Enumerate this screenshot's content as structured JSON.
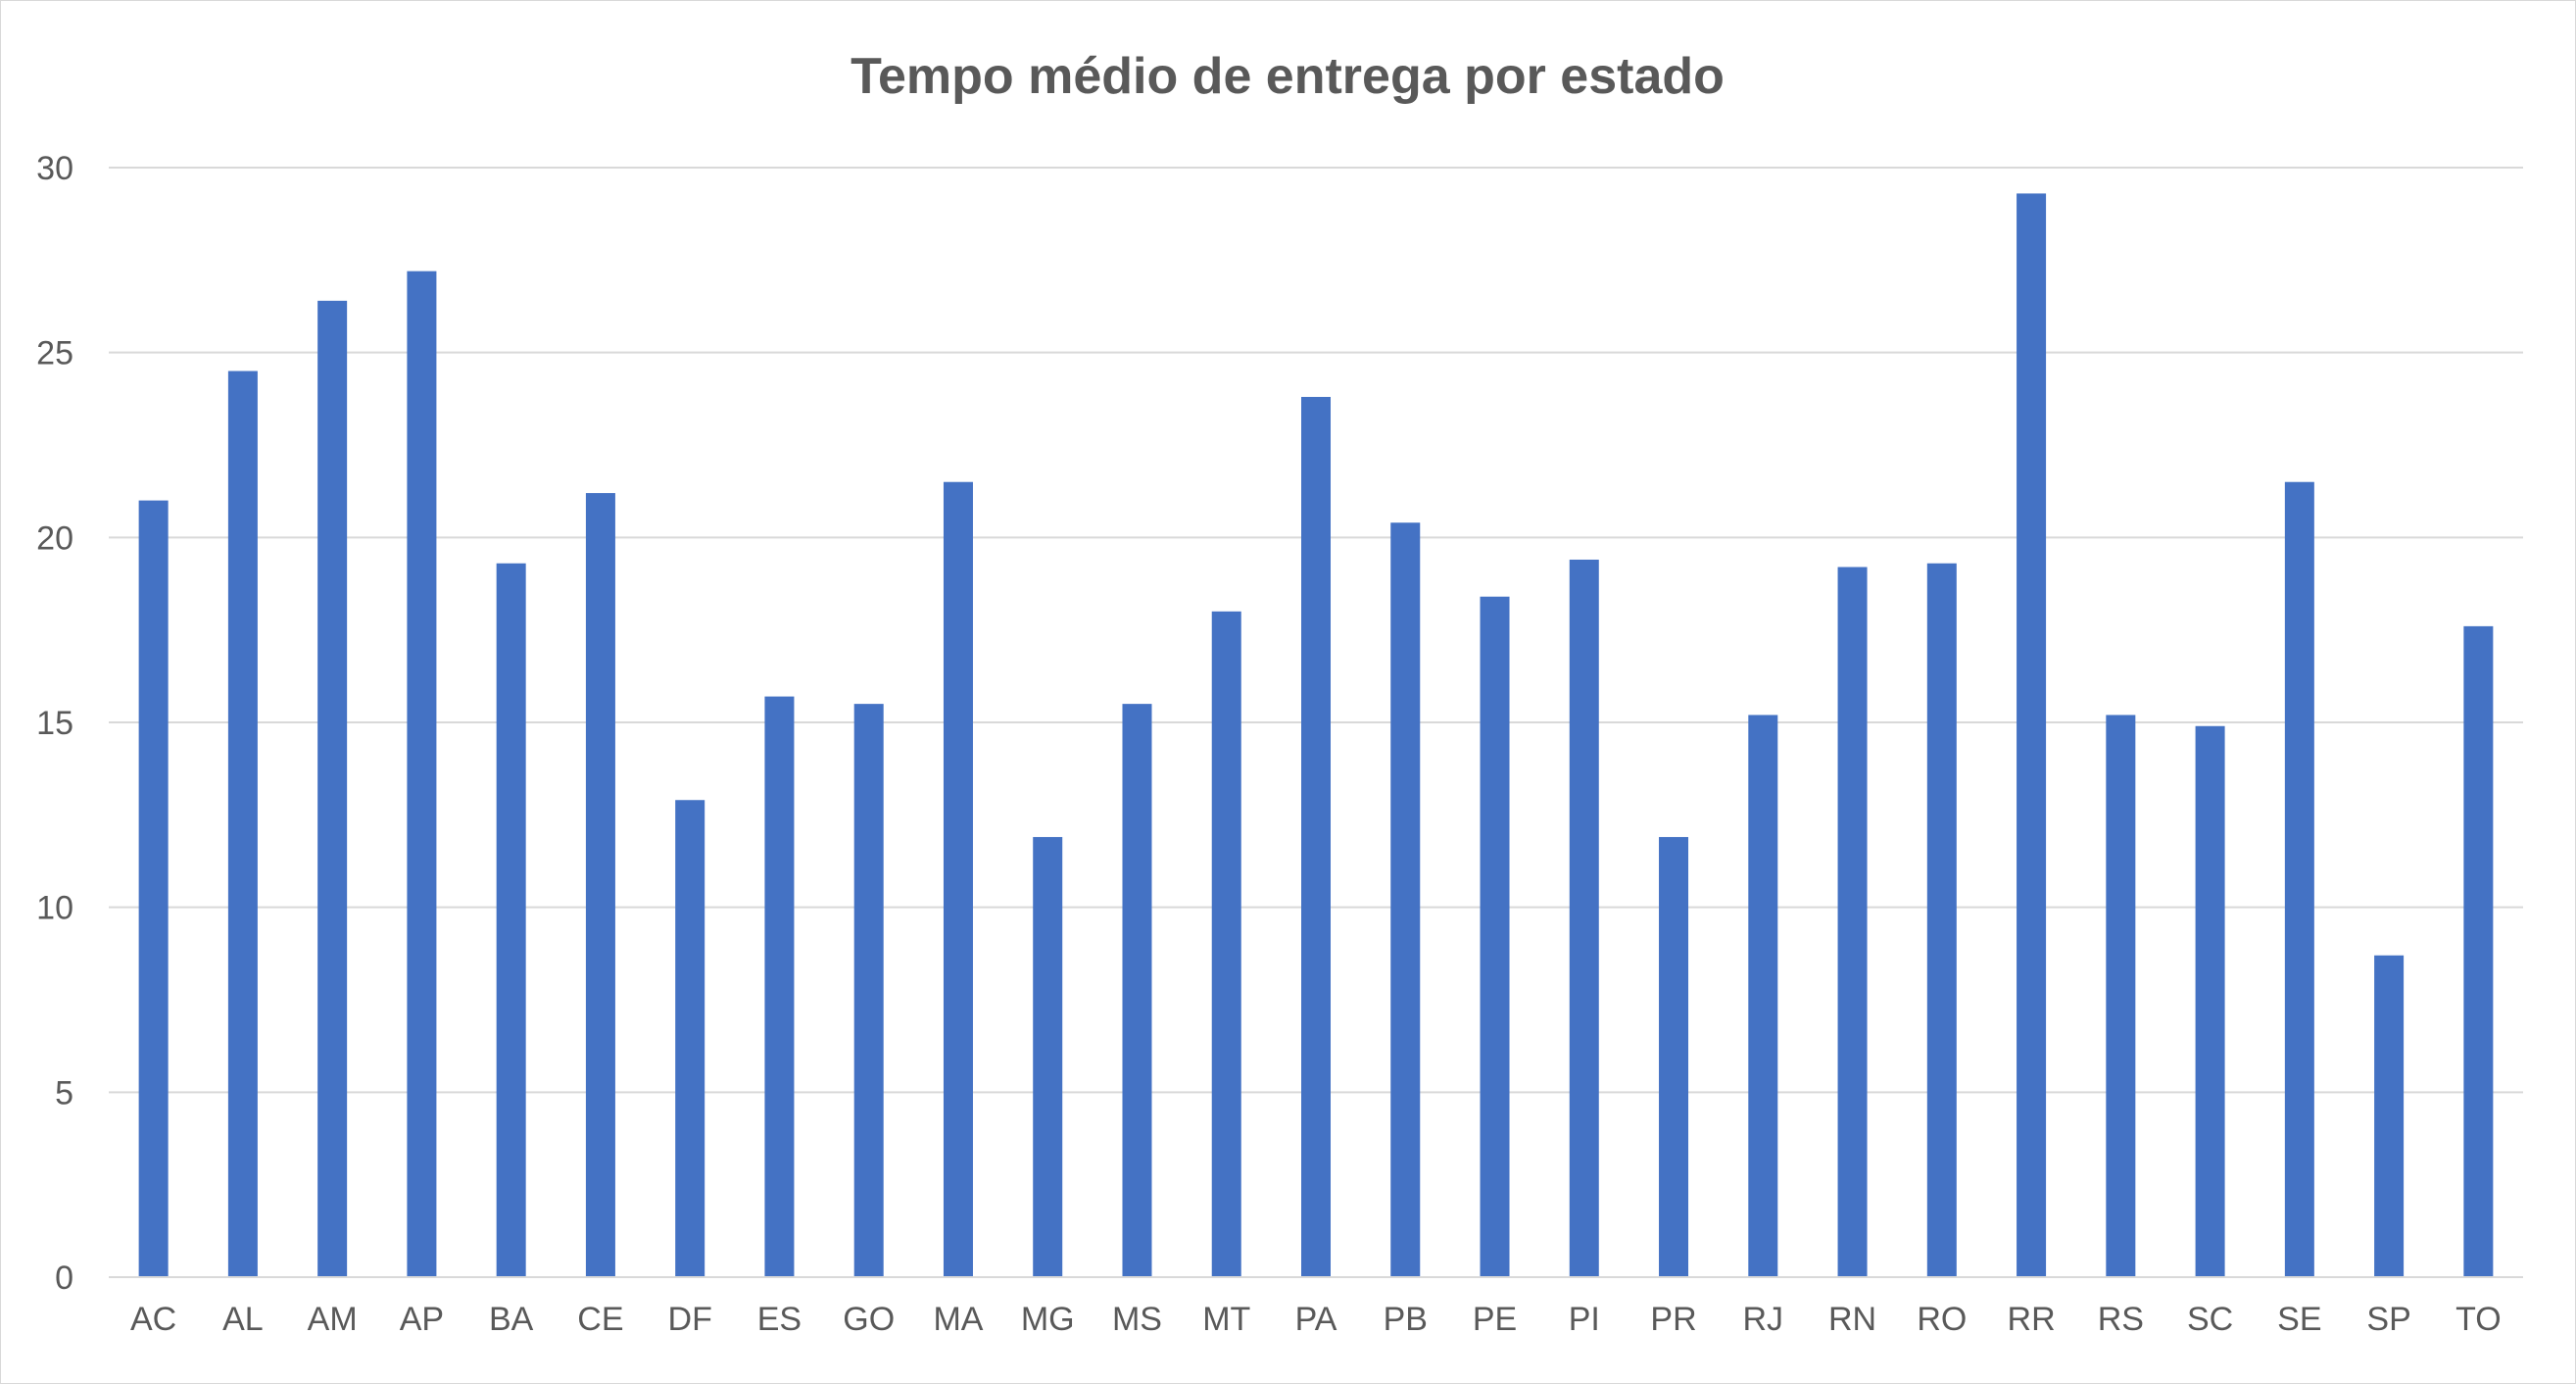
{
  "chart_data": {
    "type": "bar",
    "title": "Tempo médio de entrega por estado",
    "xlabel": "",
    "ylabel": "",
    "ylim": [
      0,
      30
    ],
    "yticks": [
      0,
      5,
      10,
      15,
      20,
      25,
      30
    ],
    "grid": true,
    "legend": "none",
    "bar_color": "#4472C4",
    "categories": [
      "AC",
      "AL",
      "AM",
      "AP",
      "BA",
      "CE",
      "DF",
      "ES",
      "GO",
      "MA",
      "MG",
      "MS",
      "MT",
      "PA",
      "PB",
      "PE",
      "PI",
      "PR",
      "RJ",
      "RN",
      "RO",
      "RR",
      "RS",
      "SC",
      "SE",
      "SP",
      "TO"
    ],
    "values": [
      21.0,
      24.5,
      26.4,
      27.2,
      19.3,
      21.2,
      12.9,
      15.7,
      15.5,
      21.5,
      11.9,
      15.5,
      18.0,
      23.8,
      20.4,
      18.4,
      19.4,
      11.9,
      15.2,
      19.2,
      19.3,
      29.3,
      15.2,
      14.9,
      21.5,
      8.7,
      17.6
    ]
  }
}
